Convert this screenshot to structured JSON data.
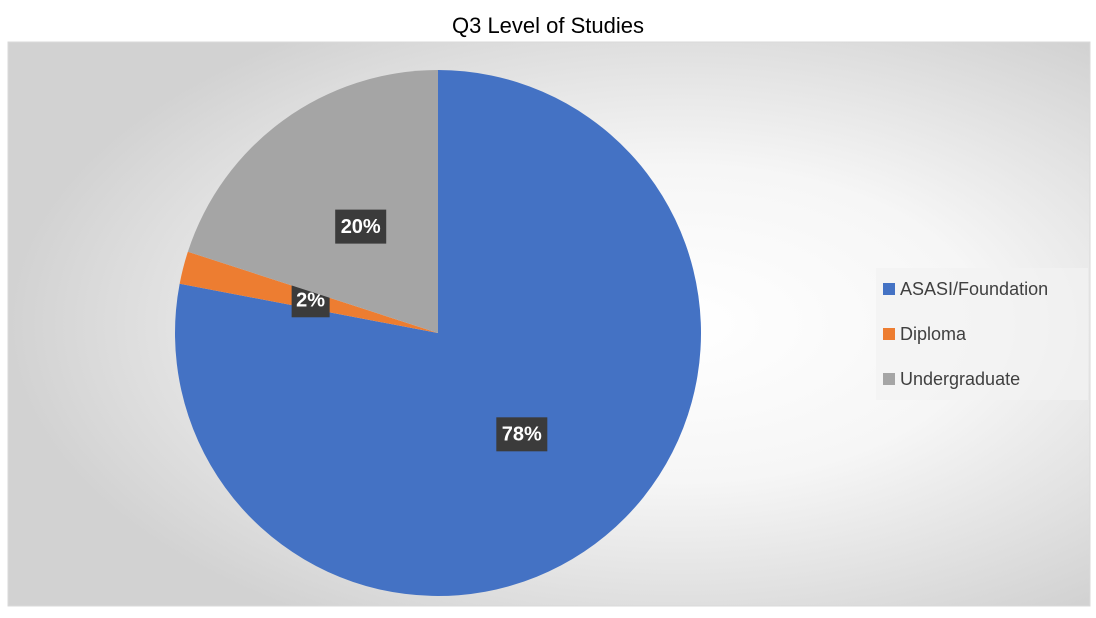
{
  "chart_data": {
    "type": "pie",
    "title": "Q3 Level of Studies",
    "categories": [
      "ASASI/Foundation",
      "Diploma",
      "Undergraduate"
    ],
    "values": [
      78,
      2,
      20
    ],
    "value_labels": [
      "78%",
      "2%",
      "20%"
    ],
    "colors": [
      "#4472c4",
      "#ed7d31",
      "#a5a5a5"
    ],
    "legend": "right"
  }
}
